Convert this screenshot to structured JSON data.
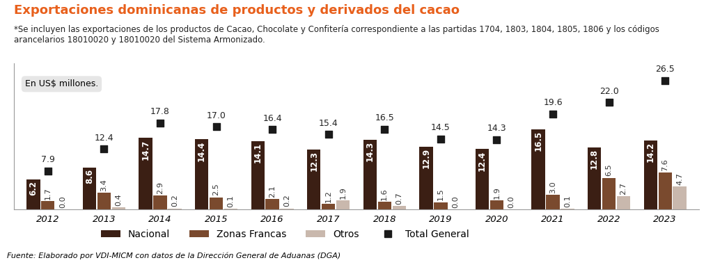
{
  "chart_data": {
    "type": "bar",
    "title": "Exportaciones dominicanas de productos y derivados del cacao",
    "subtitle": "*Se incluyen las exportaciones de los productos de Cacao, Chocolate y Confitería correspondiente a las partidas 1704, 1803, 1804, 1805, 1806 y los códigos arancelarios 18010020 y 18010020 del Sistema Armonizado.",
    "annotations": [
      "En US$ millones.",
      "Fuente: Elaborado por VDI-MICM con datos de la Dirección General de Aduanas (DGA)"
    ],
    "categories": [
      "2012",
      "2013",
      "2014",
      "2015",
      "2016",
      "2017",
      "2018",
      "2019",
      "2020",
      "2021",
      "2022",
      "2023"
    ],
    "series": [
      {
        "name": "Nacional",
        "color": "#3b1f14",
        "type": "bar",
        "values": [
          6.2,
          8.6,
          14.7,
          14.4,
          14.1,
          12.3,
          14.3,
          12.9,
          12.4,
          16.5,
          12.8,
          14.2
        ]
      },
      {
        "name": "Zonas Francas",
        "color": "#7a4a2e",
        "type": "bar",
        "values": [
          1.7,
          3.4,
          2.9,
          2.5,
          2.1,
          1.2,
          1.6,
          1.5,
          1.9,
          3.0,
          6.5,
          7.6
        ]
      },
      {
        "name": "Otros",
        "color": "#c9b8ad",
        "type": "bar",
        "values": [
          0.0,
          0.4,
          0.2,
          0.1,
          0.2,
          1.9,
          0.7,
          0.0,
          0.0,
          0.1,
          2.7,
          4.7
        ]
      },
      {
        "name": "Total General",
        "color": "#1a1a1a",
        "type": "scatter",
        "marker": "square",
        "values": [
          7.9,
          12.4,
          17.8,
          17.0,
          16.4,
          15.4,
          16.5,
          14.5,
          14.3,
          19.6,
          22.0,
          26.5
        ]
      }
    ],
    "ylim": [
      0,
      30
    ],
    "data_labels": true,
    "tick_labels": "x",
    "legend": "lower center",
    "grid": false
  }
}
